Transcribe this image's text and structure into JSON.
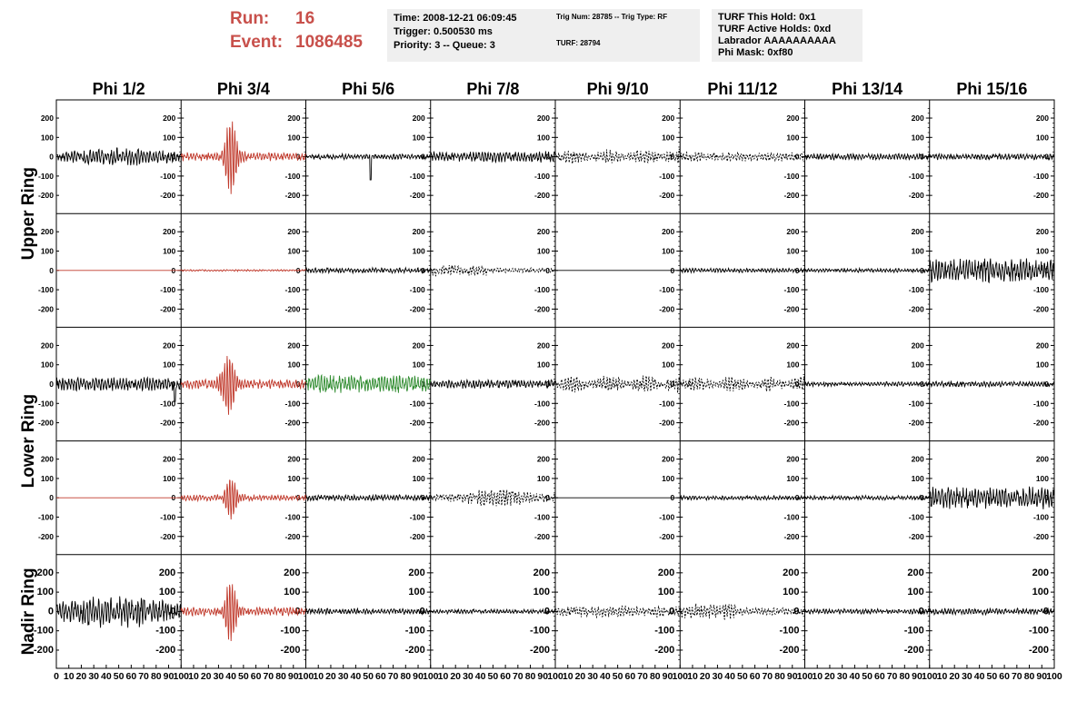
{
  "header": {
    "run_label": "Run:",
    "run_value": "16",
    "event_label": "Event:",
    "event_value": "1086485",
    "time": "Time: 2008-12-21 06:09:45",
    "trigger": "Trigger: 0.500530 ms",
    "priority": "Priority: 3 -- Queue: 3",
    "trig_num": "Trig Num: 28785 -- Trig Type: RF",
    "turf": "TURF: 28794",
    "turf_this_hold": "TURF This Hold: 0x1",
    "turf_active_holds": "TURF Active Holds: 0xd",
    "labrador": "Labrador AAAAAAAAAA",
    "phi_mask": "Phi Mask: 0xf80"
  },
  "colors": {
    "accent": "#c8504b",
    "trace_default": "#000000",
    "trace_red": "#c0392b",
    "trace_green": "#2e8b2e",
    "panel_bg": "#efefef"
  },
  "chart_data": {
    "type": "line",
    "columns": [
      "Phi 1/2",
      "Phi 3/4",
      "Phi 5/6",
      "Phi 7/8",
      "Phi 9/10",
      "Phi 11/12",
      "Phi 13/14",
      "Phi 15/16"
    ],
    "rows": [
      "Upper Ring",
      "Lower Ring",
      "Nadir Ring"
    ],
    "ylim": [
      -250,
      250
    ],
    "yticks": [
      -200,
      -100,
      0,
      100,
      200
    ],
    "xlim": [
      0,
      100
    ],
    "xticks": [
      0,
      10,
      20,
      30,
      40,
      50,
      60,
      70,
      80,
      90,
      100
    ],
    "panels": [
      {
        "row": 0,
        "col": 0,
        "color": "black",
        "style": "solid",
        "amp": 40,
        "env": "wide"
      },
      {
        "row": 0,
        "col": 1,
        "color": "red",
        "style": "solid",
        "amp": 20,
        "pulse": {
          "center": 40,
          "amp": 180,
          "width": 6
        }
      },
      {
        "row": 0,
        "col": 2,
        "color": "black",
        "style": "solid",
        "amp": 12,
        "spike": {
          "at": 52,
          "amp": -120
        }
      },
      {
        "row": 0,
        "col": 3,
        "color": "black",
        "style": "solid",
        "amp": 25
      },
      {
        "row": 0,
        "col": 4,
        "color": "black",
        "style": "dashed",
        "amp": 35,
        "env": "bursts"
      },
      {
        "row": 0,
        "col": 5,
        "color": "black",
        "style": "dashed",
        "amp": 20
      },
      {
        "row": 0,
        "col": 6,
        "color": "black",
        "style": "solid",
        "amp": 14
      },
      {
        "row": 0,
        "col": 7,
        "color": "black",
        "style": "solid",
        "amp": 14
      },
      {
        "row": 1,
        "col": 0,
        "color": "red",
        "style": "solid",
        "amp": 0
      },
      {
        "row": 1,
        "col": 1,
        "color": "red",
        "style": "solid",
        "amp": 4
      },
      {
        "row": 1,
        "col": 2,
        "color": "black",
        "style": "solid",
        "amp": 12
      },
      {
        "row": 1,
        "col": 3,
        "color": "black",
        "style": "dashed",
        "amp": 25,
        "env": "early"
      },
      {
        "row": 1,
        "col": 4,
        "color": "black",
        "style": "solid",
        "amp": 0
      },
      {
        "row": 1,
        "col": 5,
        "color": "black",
        "style": "solid",
        "amp": 10
      },
      {
        "row": 1,
        "col": 6,
        "color": "black",
        "style": "solid",
        "amp": 9
      },
      {
        "row": 1,
        "col": 7,
        "color": "black",
        "style": "solid",
        "amp": 55
      },
      {
        "row": 2,
        "col": 0,
        "color": "black",
        "style": "solid",
        "amp": 30,
        "spike": {
          "at": 95,
          "amp": -90
        }
      },
      {
        "row": 2,
        "col": 1,
        "color": "red",
        "style": "solid",
        "amp": 22,
        "pulse": {
          "center": 38,
          "amp": 140,
          "width": 7
        }
      },
      {
        "row": 2,
        "col": 2,
        "color": "green",
        "style": "solid",
        "amp": 40
      },
      {
        "row": 2,
        "col": 3,
        "color": "black",
        "style": "solid",
        "amp": 20
      },
      {
        "row": 2,
        "col": 4,
        "color": "black",
        "style": "dashed",
        "amp": 40,
        "env": "bursts"
      },
      {
        "row": 2,
        "col": 5,
        "color": "black",
        "style": "dashed",
        "amp": 35,
        "env": "bursts"
      },
      {
        "row": 2,
        "col": 6,
        "color": "black",
        "style": "solid",
        "amp": 10
      },
      {
        "row": 2,
        "col": 7,
        "color": "black",
        "style": "solid",
        "amp": 12
      },
      {
        "row": 3,
        "col": 0,
        "color": "red",
        "style": "solid",
        "amp": 0
      },
      {
        "row": 3,
        "col": 1,
        "color": "red",
        "style": "solid",
        "amp": 14,
        "pulse": {
          "center": 40,
          "amp": 100,
          "width": 6
        }
      },
      {
        "row": 3,
        "col": 2,
        "color": "black",
        "style": "solid",
        "amp": 14
      },
      {
        "row": 3,
        "col": 3,
        "color": "black",
        "style": "dashed",
        "amp": 45,
        "env": "mid"
      },
      {
        "row": 3,
        "col": 4,
        "color": "black",
        "style": "solid",
        "amp": 0
      },
      {
        "row": 3,
        "col": 5,
        "color": "black",
        "style": "solid",
        "amp": 10
      },
      {
        "row": 3,
        "col": 6,
        "color": "black",
        "style": "solid",
        "amp": 10
      },
      {
        "row": 3,
        "col": 7,
        "color": "black",
        "style": "solid",
        "amp": 50
      },
      {
        "row": 4,
        "col": 0,
        "color": "black",
        "style": "solid",
        "amp": 75,
        "env": "wide"
      },
      {
        "row": 4,
        "col": 1,
        "color": "red",
        "style": "solid",
        "amp": 20,
        "pulse": {
          "center": 40,
          "amp": 150,
          "width": 6
        }
      },
      {
        "row": 4,
        "col": 2,
        "color": "black",
        "style": "solid",
        "amp": 14
      },
      {
        "row": 4,
        "col": 3,
        "color": "black",
        "style": "solid",
        "amp": 10
      },
      {
        "row": 4,
        "col": 4,
        "color": "black",
        "style": "dashed",
        "amp": 25
      },
      {
        "row": 4,
        "col": 5,
        "color": "black",
        "style": "dashed",
        "amp": 35,
        "env": "early"
      },
      {
        "row": 4,
        "col": 6,
        "color": "black",
        "style": "solid",
        "amp": 12
      },
      {
        "row": 4,
        "col": 7,
        "color": "black",
        "style": "solid",
        "amp": 14
      }
    ]
  }
}
